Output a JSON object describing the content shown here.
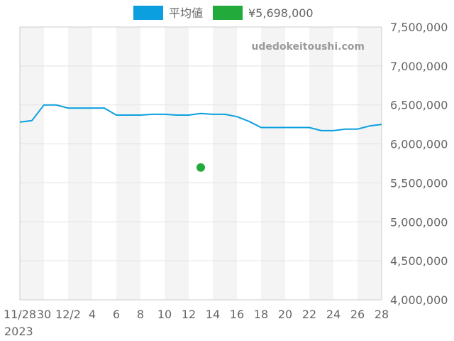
{
  "chart_data": {
    "type": "line",
    "watermark": "udedokeitoushi.com",
    "legend_position": "top-center",
    "grid": true,
    "ylim": [
      4000000,
      7500000
    ],
    "y_ticks": [
      "4,000,000",
      "4,500,000",
      "5,000,000",
      "5,500,000",
      "6,000,000",
      "6,500,000",
      "7,000,000",
      "7,500,000"
    ],
    "x_tick_labels": [
      "11/28",
      "30",
      "12/2",
      "4",
      "6",
      "8",
      "10",
      "12",
      "14",
      "16",
      "18",
      "20",
      "22",
      "24",
      "26",
      "28"
    ],
    "x_year_label": "2023",
    "x": [
      "11/28",
      "11/29",
      "11/30",
      "12/01",
      "12/02",
      "12/03",
      "12/04",
      "12/05",
      "12/06",
      "12/07",
      "12/08",
      "12/09",
      "12/10",
      "12/11",
      "12/12",
      "12/13",
      "12/14",
      "12/15",
      "12/16",
      "12/17",
      "12/18",
      "12/19",
      "12/20",
      "12/21",
      "12/22",
      "12/23",
      "12/24",
      "12/25",
      "12/26",
      "12/27",
      "12/28"
    ],
    "series": [
      {
        "name": "平均値",
        "color": "#0b9fe0",
        "type": "line",
        "values": [
          6280000,
          6300000,
          6500000,
          6500000,
          6460000,
          6460000,
          6460000,
          6460000,
          6370000,
          6370000,
          6370000,
          6380000,
          6380000,
          6370000,
          6370000,
          6390000,
          6380000,
          6380000,
          6350000,
          6290000,
          6210000,
          6210000,
          6210000,
          6210000,
          6210000,
          6170000,
          6170000,
          6190000,
          6190000,
          6230000,
          6250000
        ]
      },
      {
        "name": "¥5,698,000",
        "color": "#22aa3a",
        "type": "point",
        "x": "12/13",
        "value": 5698000
      }
    ]
  }
}
